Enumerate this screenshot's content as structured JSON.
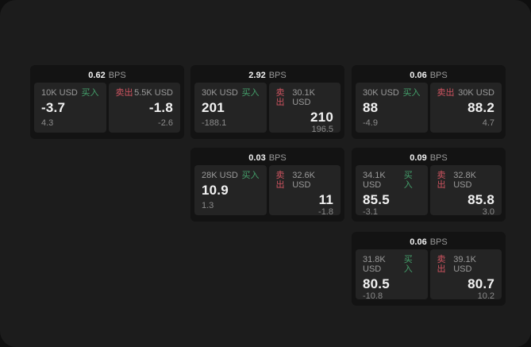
{
  "colors": {
    "outside_bg": "#0f0f0f",
    "page_bg": "#1c1c1c",
    "card_bg": "#131313",
    "panel_bg": "#242424",
    "text_white": "#f2f2f2",
    "text_grey": "#9a9a9a",
    "text_grey2": "#8b8b8b",
    "buy_green": "#44a06b",
    "sell_red": "#cf5460"
  },
  "labels": {
    "bps": "BPS",
    "buy": "买入",
    "sell": "卖出"
  },
  "cards": [
    {
      "bps": "0.62",
      "row": 0,
      "col": 0,
      "buy": {
        "amount": "10K USD",
        "price": "-3.7",
        "delta": "4.3"
      },
      "sell": {
        "amount": "5.5K USD",
        "price": "-1.8",
        "delta": "-2.6"
      }
    },
    {
      "bps": "2.92",
      "row": 0,
      "col": 1,
      "buy": {
        "amount": "30K USD",
        "price": "201",
        "delta": "-188.1"
      },
      "sell": {
        "amount": "30.1K USD",
        "price": "210",
        "delta": "196.5"
      }
    },
    {
      "bps": "0.06",
      "row": 0,
      "col": 2,
      "buy": {
        "amount": "30K USD",
        "price": "88",
        "delta": "-4.9"
      },
      "sell": {
        "amount": "30K USD",
        "price": "88.2",
        "delta": "4.7"
      }
    },
    {
      "bps": "0.03",
      "row": 1,
      "col": 1,
      "buy": {
        "amount": "28K USD",
        "price": "10.9",
        "delta": "1.3"
      },
      "sell": {
        "amount": "32.6K USD",
        "price": "11",
        "delta": "-1.8"
      }
    },
    {
      "bps": "0.09",
      "row": 1,
      "col": 2,
      "buy": {
        "amount": "34.1K USD",
        "price": "85.5",
        "delta": "-3.1"
      },
      "sell": {
        "amount": "32.8K USD",
        "price": "85.8",
        "delta": "3.0"
      }
    },
    {
      "bps": "0.06",
      "row": 2,
      "col": 2,
      "buy": {
        "amount": "31.8K USD",
        "price": "80.5",
        "delta": "-10.8"
      },
      "sell": {
        "amount": "39.1K USD",
        "price": "80.7",
        "delta": "10.2"
      }
    }
  ]
}
